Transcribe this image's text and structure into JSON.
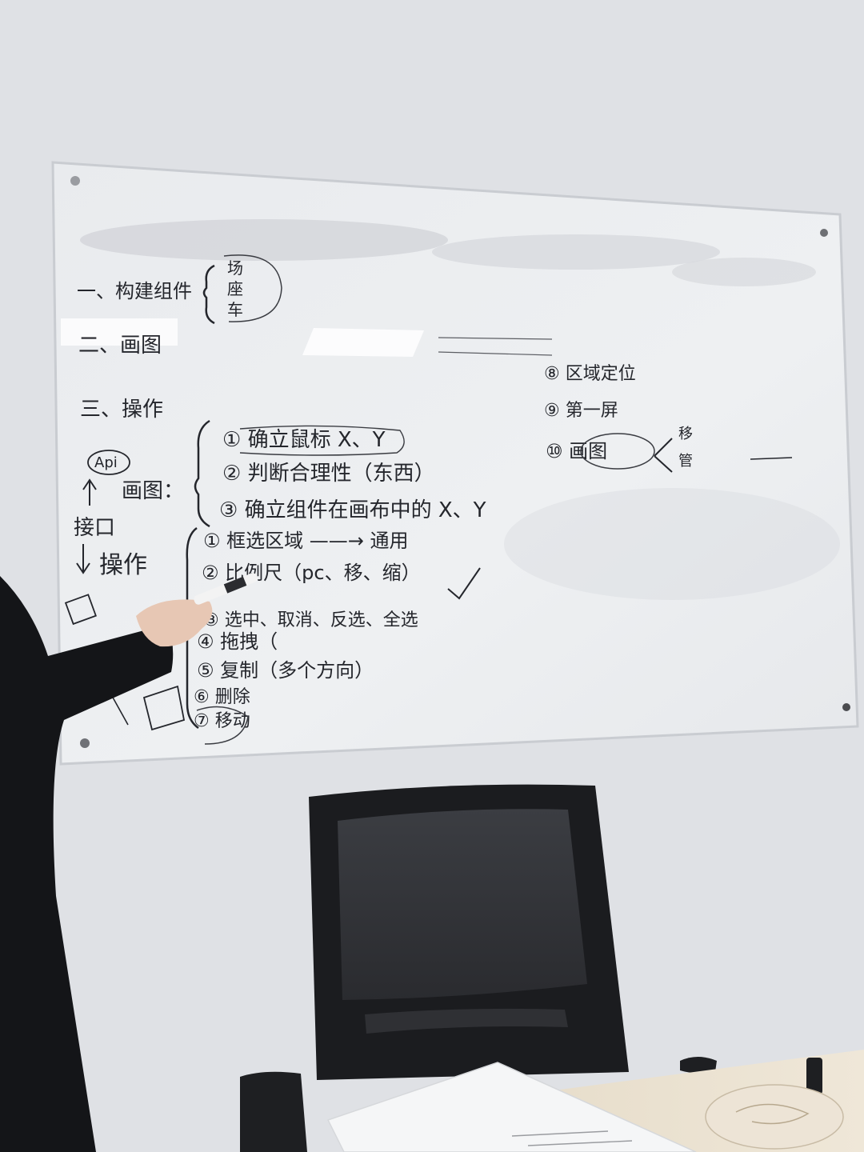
{
  "whiteboard": {
    "heading_1": "一、构建组件",
    "heading_1_items": [
      "场",
      "座",
      "车"
    ],
    "heading_2": "二、画图",
    "heading_3": "三、操作",
    "api_label": "Api",
    "draw_label": "画图：",
    "interface_label": "接口",
    "operate_label": "操作",
    "draw_steps": [
      "① 确立鼠标 X、Y",
      "② 判断合理性（东西）",
      "③ 确立组件在画布中的 X、Y"
    ],
    "operate_steps": [
      "① 框选区域 ——→ 通用",
      "② 比例尺（pc、移、缩）",
      "③ 选中、取消、反选、全选",
      "④ 拖拽（",
      "⑤ 复制（多个方向）",
      "⑥ 删除",
      "⑦ 移动"
    ],
    "right_steps": [
      "⑧ 区域定位",
      "⑨ 第一屏",
      "⑩ 画图"
    ],
    "right_side_marks": [
      "移",
      "管"
    ]
  },
  "colors": {
    "wall": "#dfe1e5",
    "board": "#eceef1",
    "marker": "#24262c",
    "chair": "#1b1c1f",
    "table": "#ebe2d2"
  }
}
